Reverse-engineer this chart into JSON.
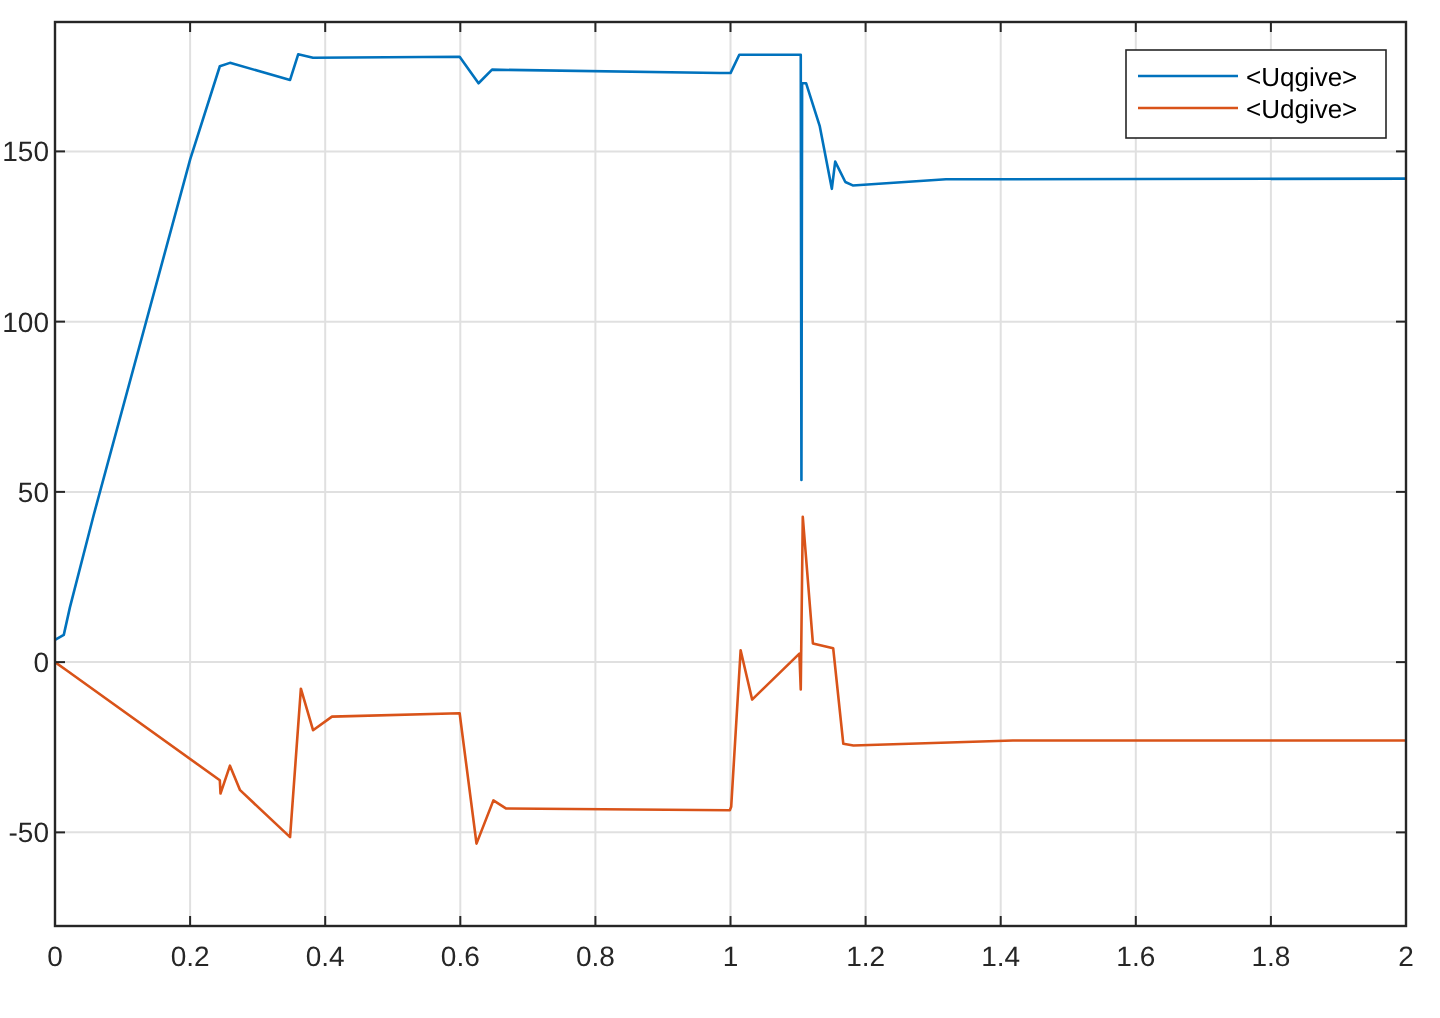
{
  "chart_data": {
    "type": "line",
    "xlim": [
      0,
      2
    ],
    "xticks": [
      0,
      0.2,
      0.4,
      0.6,
      0.8,
      1,
      1.2,
      1.4,
      1.6,
      1.8,
      2
    ],
    "ylim": [
      -77.5,
      188
    ],
    "yticks": [
      -50,
      0,
      50,
      100,
      150
    ],
    "grid": true,
    "legend": "top right",
    "line_style": "solid",
    "marker": "none",
    "series": [
      {
        "name": "<Uqgive>",
        "color": "#0072bd",
        "x": [
          0,
          0.013,
          0.022,
          0.057,
          0.2,
          0.244,
          0.259,
          0.348,
          0.36,
          0.382,
          0.599,
          0.627,
          0.647,
          0.984,
          1.0,
          1.013,
          1.104,
          1.105,
          1.106,
          1.112,
          1.132,
          1.15,
          1.155,
          1.17,
          1.181,
          1.319,
          2
        ],
        "values": [
          6.5,
          8,
          16,
          43,
          147.6,
          175,
          176,
          171,
          178.5,
          177.5,
          177.8,
          170,
          174,
          173,
          173,
          178.4,
          178.4,
          53.5,
          170,
          170,
          157.5,
          139,
          147,
          141,
          140,
          141.8,
          142
        ]
      },
      {
        "name": "<Udgive>",
        "color": "#d95319",
        "x": [
          0,
          0.017,
          0.244,
          0.245,
          0.259,
          0.274,
          0.348,
          0.364,
          0.382,
          0.41,
          0.599,
          0.624,
          0.649,
          0.668,
          0.999,
          1.001,
          1.015,
          1.032,
          1.102,
          1.104,
          1.107,
          1.122,
          1.152,
          1.167,
          1.182,
          1.418,
          2
        ],
        "values": [
          0,
          -2.4,
          -34.7,
          -38.6,
          -30.4,
          -37.6,
          -51.4,
          -7.8,
          -20,
          -16,
          -15,
          -53.3,
          -40.6,
          -43,
          -43.5,
          -42.5,
          3.5,
          -11,
          2.5,
          -8,
          42.7,
          5.5,
          4.1,
          -24,
          -24.5,
          -23,
          -23
        ]
      }
    ]
  }
}
